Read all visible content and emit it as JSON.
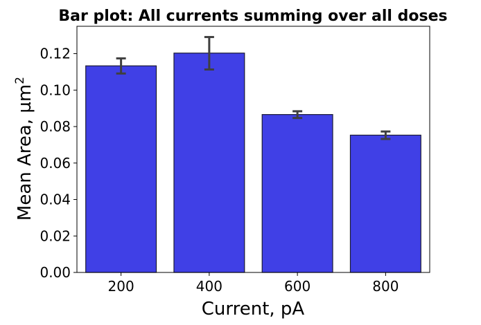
{
  "chart_data": {
    "type": "bar",
    "title": "Bar plot: All currents summing over all doses",
    "xlabel": "Current, pA",
    "ylabel": "Mean Area, µm²",
    "categories": [
      "200",
      "400",
      "600",
      "800"
    ],
    "values": [
      0.1133,
      0.1203,
      0.0866,
      0.0753
    ],
    "error_low": [
      0.1091,
      0.1113,
      0.0847,
      0.0732
    ],
    "error_high": [
      0.1174,
      0.1291,
      0.0884,
      0.0773
    ],
    "ylim": [
      0,
      0.135
    ],
    "yticks": [
      0.0,
      0.02,
      0.04,
      0.06,
      0.08,
      0.1,
      0.12
    ],
    "ytick_labels": [
      "0.00",
      "0.02",
      "0.04",
      "0.06",
      "0.08",
      "0.10",
      "0.12"
    ],
    "grid": false,
    "legend": "none",
    "colors": {
      "bar_fill": "#4040e6",
      "bar_edge": "#1a1a33",
      "error_bar": "#3f3f3f",
      "axis": "#000000"
    }
  }
}
